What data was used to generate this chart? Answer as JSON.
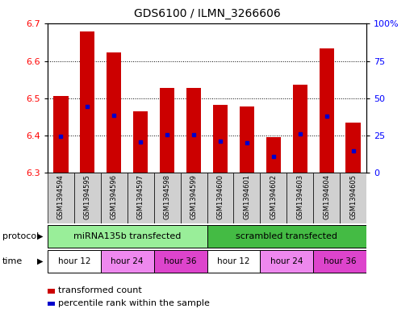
{
  "title": "GDS6100 / ILMN_3266606",
  "samples": [
    "GSM1394594",
    "GSM1394595",
    "GSM1394596",
    "GSM1394597",
    "GSM1394598",
    "GSM1394599",
    "GSM1394600",
    "GSM1394601",
    "GSM1394602",
    "GSM1394603",
    "GSM1394604",
    "GSM1394605"
  ],
  "bar_tops": [
    6.506,
    6.68,
    6.624,
    6.466,
    6.527,
    6.527,
    6.483,
    6.477,
    6.395,
    6.537,
    6.634,
    6.435
  ],
  "bar_bottoms": [
    6.3,
    6.3,
    6.3,
    6.3,
    6.3,
    6.3,
    6.3,
    6.3,
    6.3,
    6.3,
    6.3,
    6.3
  ],
  "percentile_values": [
    6.398,
    6.477,
    6.454,
    6.382,
    6.402,
    6.403,
    6.384,
    6.381,
    6.343,
    6.404,
    6.453,
    6.359
  ],
  "ylim_left": [
    6.3,
    6.7
  ],
  "ylim_right": [
    0,
    100
  ],
  "yticks_left": [
    6.3,
    6.4,
    6.5,
    6.6,
    6.7
  ],
  "yticks_right": [
    0,
    25,
    50,
    75,
    100
  ],
  "bar_color": "#cc0000",
  "percentile_color": "#0000cc",
  "bar_width": 0.55,
  "sample_box_color": "#d0d0d0",
  "protocol_colors": [
    "#99ee99",
    "#44bb44"
  ],
  "protocol_labels": [
    "miRNA135b transfected",
    "scrambled transfected"
  ],
  "time_colors": [
    "#ffffff",
    "#ee88ee",
    "#dd44cc"
  ],
  "time_labels": [
    "hour 12",
    "hour 24",
    "hour 36"
  ],
  "time_color_idx": [
    0,
    1,
    2,
    0,
    1,
    2
  ],
  "legend_items": [
    {
      "label": "transformed count",
      "color": "#cc0000"
    },
    {
      "label": "percentile rank within the sample",
      "color": "#0000cc"
    }
  ]
}
